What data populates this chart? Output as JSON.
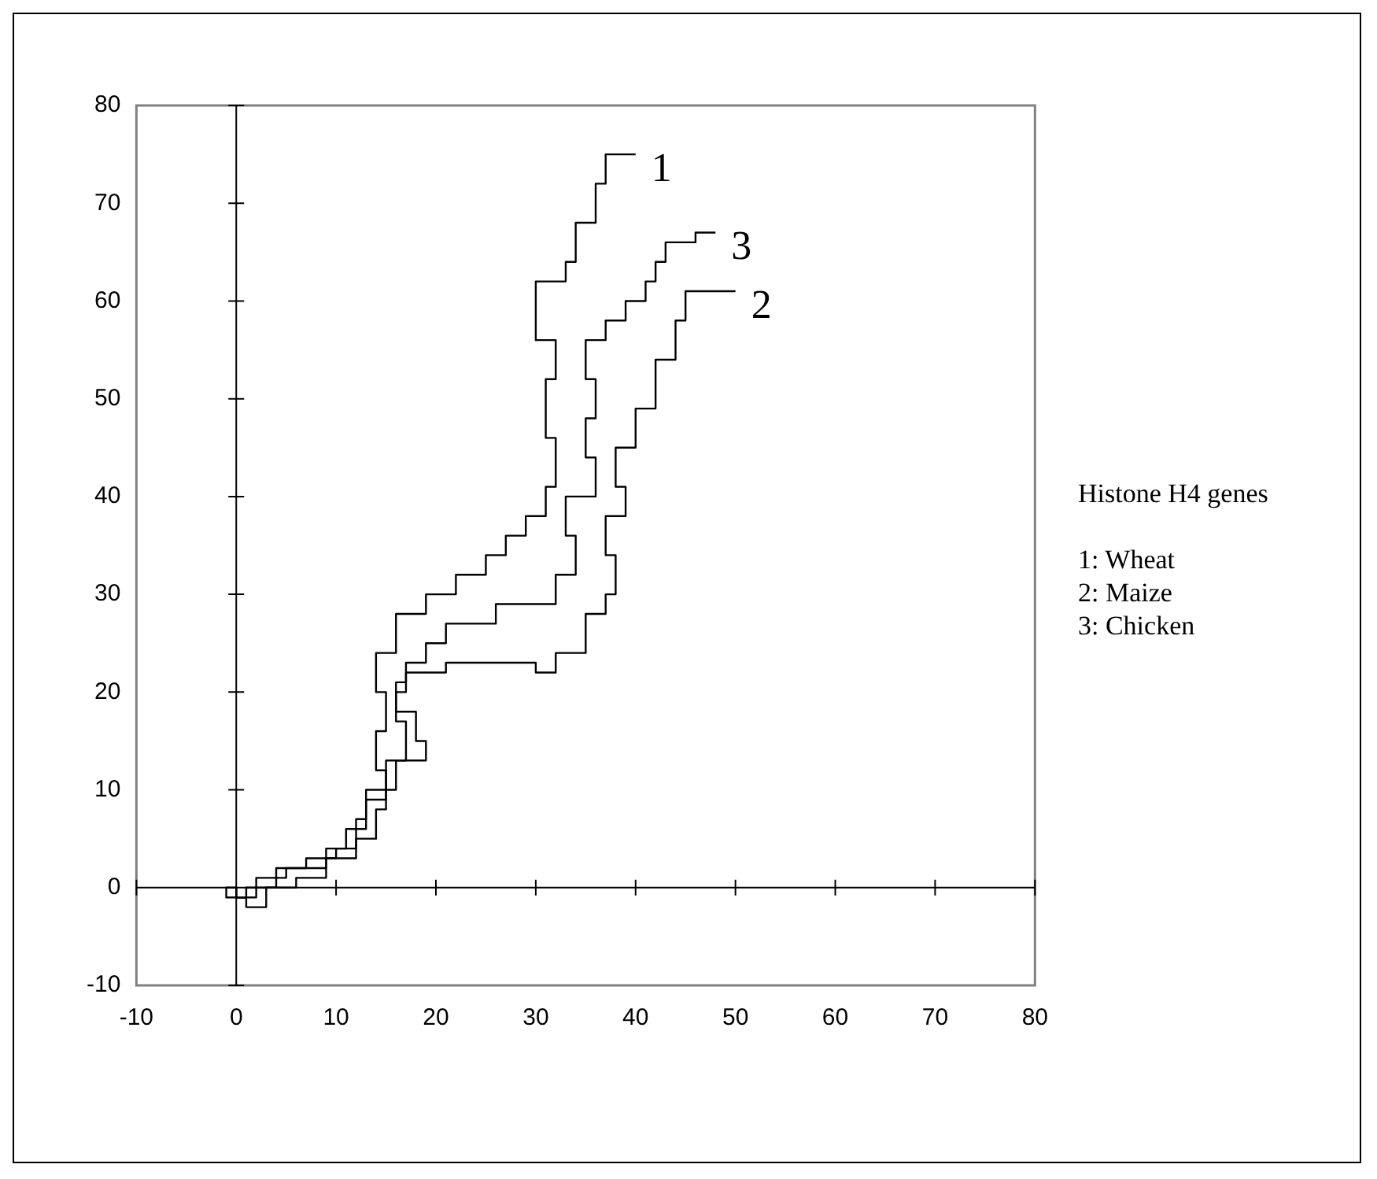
{
  "chart_data": {
    "type": "line",
    "xlim": [
      -10,
      80
    ],
    "ylim": [
      -10,
      80
    ],
    "xticks": [
      -10,
      0,
      10,
      20,
      30,
      40,
      50,
      60,
      70,
      80
    ],
    "yticks": [
      -10,
      0,
      10,
      20,
      30,
      40,
      50,
      60,
      70,
      80
    ],
    "legend": false,
    "marker": "none",
    "line_style": "solid",
    "annotations": [
      "Histone H4 genes",
      "1: Wheat",
      "2: Maize",
      "3: Chicken"
    ],
    "series": [
      {
        "name": "1",
        "color": "#000000",
        "x": [
          0,
          -1,
          -1,
          1,
          1,
          3,
          3,
          6,
          6,
          9,
          9,
          12,
          12,
          14,
          14,
          15,
          15,
          14,
          14,
          15,
          15,
          14,
          14,
          16,
          16,
          19,
          19,
          22,
          22,
          25,
          25,
          27,
          27,
          29,
          29,
          31,
          31,
          32,
          32,
          31,
          31,
          32,
          32,
          30,
          30,
          33,
          33,
          34,
          34,
          36,
          36,
          37,
          37,
          40
        ],
        "values": [
          0,
          0,
          -1,
          -1,
          -2,
          -2,
          0,
          0,
          1,
          1,
          3,
          3,
          5,
          5,
          8,
          8,
          12,
          12,
          16,
          16,
          20,
          20,
          24,
          24,
          28,
          28,
          30,
          30,
          32,
          32,
          34,
          34,
          36,
          36,
          38,
          38,
          41,
          41,
          46,
          46,
          52,
          52,
          56,
          56,
          62,
          62,
          64,
          64,
          68,
          68,
          72,
          72,
          75,
          75
        ]
      },
      {
        "name": "2",
        "color": "#000000",
        "x": [
          0,
          0,
          2,
          2,
          5,
          5,
          9,
          9,
          11,
          11,
          13,
          13,
          15,
          15,
          17,
          17,
          16,
          16,
          17,
          17,
          21,
          21,
          30,
          30,
          32,
          32,
          35,
          35,
          37,
          37,
          38,
          38,
          37,
          37,
          39,
          39,
          38,
          38,
          40,
          40,
          42,
          42,
          44,
          44,
          45,
          45,
          50
        ],
        "values": [
          0,
          -1,
          -1,
          1,
          1,
          2,
          2,
          4,
          4,
          6,
          6,
          9,
          9,
          13,
          13,
          17,
          17,
          20,
          20,
          22,
          22,
          23,
          23,
          22,
          22,
          24,
          24,
          28,
          28,
          30,
          30,
          34,
          34,
          38,
          38,
          41,
          41,
          45,
          45,
          49,
          49,
          54,
          54,
          58,
          58,
          61,
          61
        ]
      },
      {
        "name": "3",
        "color": "#000000",
        "x": [
          0,
          0,
          1,
          1,
          4,
          4,
          7,
          7,
          10,
          10,
          12,
          12,
          13,
          13,
          16,
          16,
          19,
          19,
          18,
          18,
          16,
          16,
          17,
          17,
          19,
          19,
          21,
          21,
          26,
          26,
          32,
          32,
          34,
          34,
          33,
          33,
          36,
          36,
          35,
          35,
          36,
          36,
          35,
          35,
          37,
          37,
          39,
          39,
          41,
          41,
          42,
          42,
          43,
          43,
          46,
          46,
          48
        ],
        "values": [
          0,
          -1,
          -1,
          0,
          0,
          2,
          2,
          3,
          3,
          4,
          4,
          7,
          7,
          10,
          10,
          13,
          13,
          15,
          15,
          18,
          18,
          21,
          21,
          23,
          23,
          25,
          25,
          27,
          27,
          29,
          29,
          32,
          32,
          36,
          36,
          40,
          40,
          44,
          44,
          48,
          48,
          52,
          52,
          56,
          56,
          58,
          58,
          60,
          60,
          62,
          62,
          64,
          64,
          66,
          66,
          67,
          67
        ]
      }
    ]
  }
}
